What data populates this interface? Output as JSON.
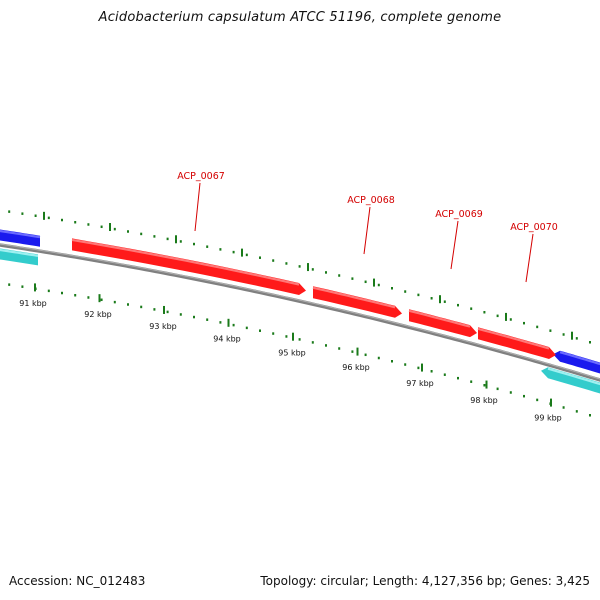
{
  "title": "Acidobacterium capsulatum ATCC 51196, complete genome",
  "footer": {
    "accession": "Accession: NC_012483",
    "info": "Topology: circular; Length: 4,127,356 bp; Genes: 3,425"
  },
  "colors": {
    "backbone": "#808080",
    "gene_forward": "#ff1a1a",
    "gene_blue": "#1a1aee",
    "gene_cyan": "#33cccc",
    "tick": "#1a7a1a",
    "label": "#d40000"
  },
  "scale_labels": [
    "91 kbp",
    "92 kbp",
    "93 kbp",
    "94 kbp",
    "95 kbp",
    "96 kbp",
    "97 kbp",
    "98 kbp",
    "99 kbp"
  ],
  "genes": [
    {
      "label": "ACP_0067",
      "color": "red"
    },
    {
      "label": "ACP_0068",
      "color": "red"
    },
    {
      "label": "ACP_0069",
      "color": "red"
    },
    {
      "label": "ACP_0070",
      "color": "red"
    }
  ],
  "other_genes": [
    {
      "strand": "forward",
      "color": "blue",
      "label": ""
    },
    {
      "strand": "reverse",
      "color": "cyan",
      "label": ""
    },
    {
      "strand": "forward",
      "color": "blue",
      "label": ""
    },
    {
      "strand": "reverse",
      "color": "cyan",
      "label": ""
    }
  ]
}
